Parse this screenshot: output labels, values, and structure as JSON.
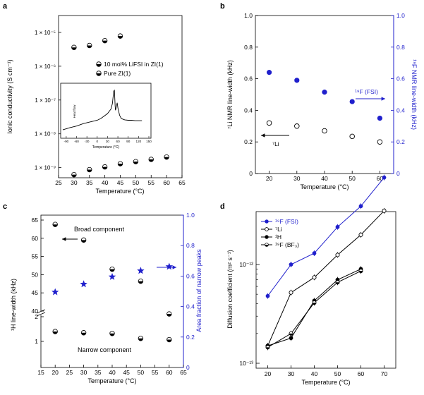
{
  "chart_data": [
    {
      "panel": "a",
      "type": "scatter",
      "xlabel": "Temperature (°C)",
      "ylabel": "Ionic conductivity (S cm⁻¹)",
      "xlim": [
        25,
        65
      ],
      "ylim_log10": [
        -9.3,
        -4.5
      ],
      "xticks": [
        25,
        30,
        35,
        40,
        45,
        50,
        55,
        60,
        65
      ],
      "yticks": [
        {
          "exp": -5,
          "label": "1 × 10⁻⁵"
        },
        {
          "exp": -6,
          "label": "1 × 10⁻⁶"
        },
        {
          "exp": -7,
          "label": "1 × 10⁻⁷"
        },
        {
          "exp": -8,
          "label": "1 × 10⁻⁸"
        },
        {
          "exp": -9,
          "label": "1 × 10⁻⁹"
        }
      ],
      "series": [
        {
          "name": "10 mol% LiFSI in ZI(1)",
          "marker": "half",
          "x": [
            30,
            35,
            40,
            45
          ],
          "y": [
            3.6e-06,
            4.1e-06,
            5.7e-06,
            7.8e-06
          ]
        },
        {
          "name": "Pure ZI(1)",
          "marker": "half",
          "x": [
            30,
            35,
            40,
            45,
            50,
            55,
            60
          ],
          "y": [
            6.2e-10,
            8.7e-10,
            1.05e-09,
            1.3e-09,
            1.5e-09,
            1.75e-09,
            2.05e-09
          ]
        }
      ],
      "inset": {
        "type": "line",
        "xlabel": "Temperature (°C)",
        "ylabel": "Heat flow",
        "xlim": [
          -100,
          150
        ],
        "xticks": [
          -90,
          -60,
          -30,
          0,
          30,
          60,
          90,
          120,
          150
        ],
        "x": [
          -100,
          -80,
          -60,
          -40,
          -20,
          0,
          10,
          20,
          30,
          40,
          44,
          48,
          50,
          52,
          53,
          55,
          58,
          60,
          65,
          70,
          80,
          90,
          100,
          110,
          120,
          130
        ],
        "y": [
          0.05,
          0.1,
          0.14,
          0.2,
          0.24,
          0.28,
          0.32,
          0.38,
          0.44,
          0.55,
          0.68,
          0.98,
          1.0,
          0.62,
          0.52,
          0.58,
          0.7,
          0.58,
          0.4,
          0.32,
          0.29,
          0.28,
          0.28,
          0.27,
          0.27,
          0.27
        ]
      }
    },
    {
      "panel": "b",
      "type": "scatter",
      "xlabel": "Temperature (°C)",
      "ylabel_left": "⁷Li NMR line-width (kHz)",
      "ylabel_right": "¹⁹F NMR line-width (kHz)",
      "xlim": [
        15,
        65
      ],
      "ylim": [
        0,
        1.0
      ],
      "ylim_right": [
        0,
        1.0
      ],
      "xticks": [
        20,
        30,
        40,
        50,
        60
      ],
      "yticks": [
        0,
        0.2,
        0.4,
        0.6,
        0.8,
        1.0
      ],
      "ytick_labels": [
        "0",
        "0.2",
        "0.4",
        "0.6",
        "0.8",
        "1.0"
      ],
      "series": [
        {
          "name": "⁷Li",
          "axis": "left",
          "marker": "open-circle",
          "color": "#000000",
          "x": [
            20,
            30,
            40,
            50,
            60
          ],
          "y": [
            0.32,
            0.3,
            0.27,
            0.235,
            0.2
          ]
        },
        {
          "name": "¹⁹F (FSI)",
          "axis": "right",
          "marker": "filled-circle",
          "color": "#1f1fcc",
          "x": [
            20,
            30,
            40,
            50,
            60
          ],
          "y": [
            0.64,
            0.59,
            0.515,
            0.455,
            0.35
          ]
        }
      ]
    },
    {
      "panel": "c",
      "type": "scatter",
      "xlabel": "Temperature (°C)",
      "ylabel_left": "¹H line-width (kHz)",
      "ylabel_right": "Area fraction of narrow peaks",
      "xlim": [
        15,
        65
      ],
      "xticks": [
        15,
        20,
        25,
        30,
        35,
        40,
        45,
        50,
        55,
        60,
        65
      ],
      "yticks_upper": [
        40,
        45,
        50,
        55,
        60,
        65
      ],
      "yticks_lower": [
        1,
        2
      ],
      "ylim_right": [
        0,
        1.0
      ],
      "yticks_right": [
        "0",
        "0.2",
        "0.4",
        "0.6",
        "0.8",
        "1.0"
      ],
      "series": [
        {
          "name": "Broad component",
          "axis": "left",
          "marker": "half",
          "x": [
            20,
            30,
            40,
            50,
            60
          ],
          "y": [
            63.8,
            59.5,
            51.5,
            48.2,
            39.2
          ]
        },
        {
          "name": "Narrow component",
          "axis": "left",
          "marker": "half",
          "x": [
            20,
            30,
            40,
            50,
            60
          ],
          "y": [
            1.4,
            1.35,
            1.32,
            1.12,
            1.07
          ]
        },
        {
          "name": "Area fraction of narrow peaks",
          "axis": "right",
          "marker": "star",
          "color": "#1f1fcc",
          "x": [
            20,
            30,
            40,
            50,
            60
          ],
          "y": [
            0.495,
            0.547,
            0.595,
            0.635,
            0.662
          ]
        }
      ],
      "annotations": [
        "Broad component",
        "Narrow component"
      ]
    },
    {
      "panel": "d",
      "type": "line",
      "xlabel": "Temperature (°C)",
      "ylabel": "Diffusion coefficient (m² s⁻¹)",
      "xlim": [
        15,
        75
      ],
      "xticks": [
        20,
        30,
        40,
        50,
        60,
        70
      ],
      "ylim_log10": [
        -13,
        -11.5
      ],
      "yticks": [
        {
          "exp": -13,
          "label": "10⁻¹³"
        },
        {
          "exp": -12,
          "label": "10⁻¹²"
        }
      ],
      "series": [
        {
          "name": "¹⁹F (FSI)",
          "marker": "filled-circle",
          "color": "#1f1fcc",
          "x": [
            20,
            30,
            40,
            50,
            60,
            70
          ],
          "y": [
            4.8e-13,
            1e-12,
            1.3e-12,
            2.4e-12,
            3.9e-12,
            7.6e-12
          ]
        },
        {
          "name": "⁷Li",
          "marker": "open-circle",
          "color": "#000000",
          "x": [
            20,
            30,
            40,
            50,
            60,
            70
          ],
          "y": [
            1.5e-13,
            5.2e-13,
            7.4e-13,
            1.25e-12,
            2e-12,
            3.5e-12
          ]
        },
        {
          "name": "¹H",
          "marker": "filled-circle",
          "color": "#000000",
          "x": [
            20,
            30,
            40,
            50,
            60
          ],
          "y": [
            1.5e-13,
            1.8e-13,
            4.3e-13,
            7e-13,
            9e-13
          ]
        },
        {
          "name": "¹⁹F (BF₃)",
          "marker": "half",
          "color": "#000000",
          "x": [
            20,
            30,
            40,
            50,
            60
          ],
          "y": [
            1.45e-13,
            2e-13,
            4.1e-13,
            6.6e-13,
            8.6e-13
          ]
        }
      ]
    }
  ]
}
